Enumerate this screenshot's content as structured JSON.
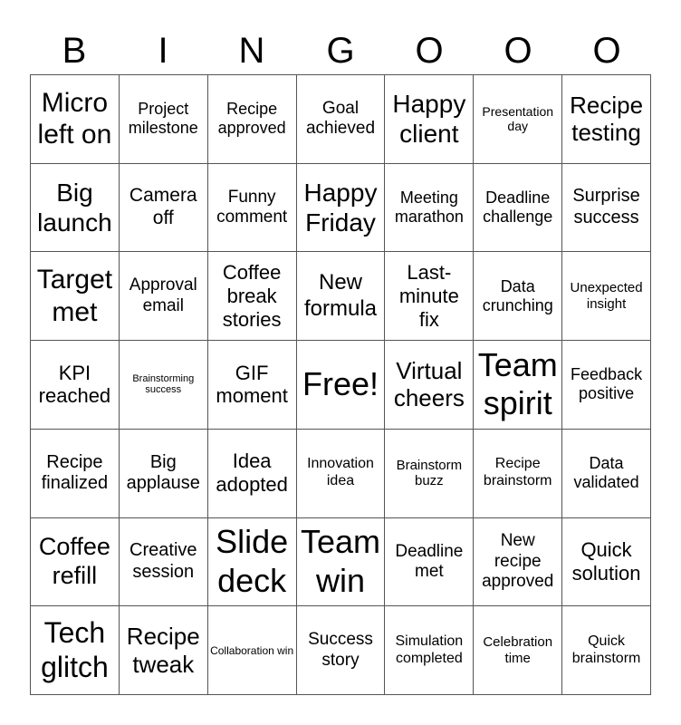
{
  "header": [
    "B",
    "I",
    "N",
    "G",
    "O",
    "O",
    "O"
  ],
  "cells": [
    [
      "Micro left on",
      "Project milestone",
      "Recipe approved",
      "Goal achieved",
      "Happy client",
      "Presentation day",
      "Recipe testing"
    ],
    [
      "Big launch",
      "Camera off",
      "Funny comment",
      "Happy Friday",
      "Meeting marathon",
      "Deadline challenge",
      "Surprise success"
    ],
    [
      "Target met",
      "Approval email",
      "Coffee break stories",
      "New formula",
      "Last-minute fix",
      "Data crunching",
      "Unexpected insight"
    ],
    [
      "KPI reached",
      "Brainstorming success",
      "GIF moment",
      "Free!",
      "Virtual cheers",
      "Team spirit",
      "Feedback positive"
    ],
    [
      "Recipe finalized",
      "Big applause",
      "Idea adopted",
      "Innovation idea",
      "Brainstorm buzz",
      "Recipe brainstorm",
      "Data validated"
    ],
    [
      "Coffee refill",
      "Creative session",
      "Slide deck",
      "Team win",
      "Deadline met",
      "New recipe approved",
      "Quick solution"
    ],
    [
      "Tech glitch",
      "Recipe tweak",
      "Collaboration win",
      "Success story",
      "Simulation completed",
      "Celebration time",
      "Quick brainstorm"
    ]
  ]
}
